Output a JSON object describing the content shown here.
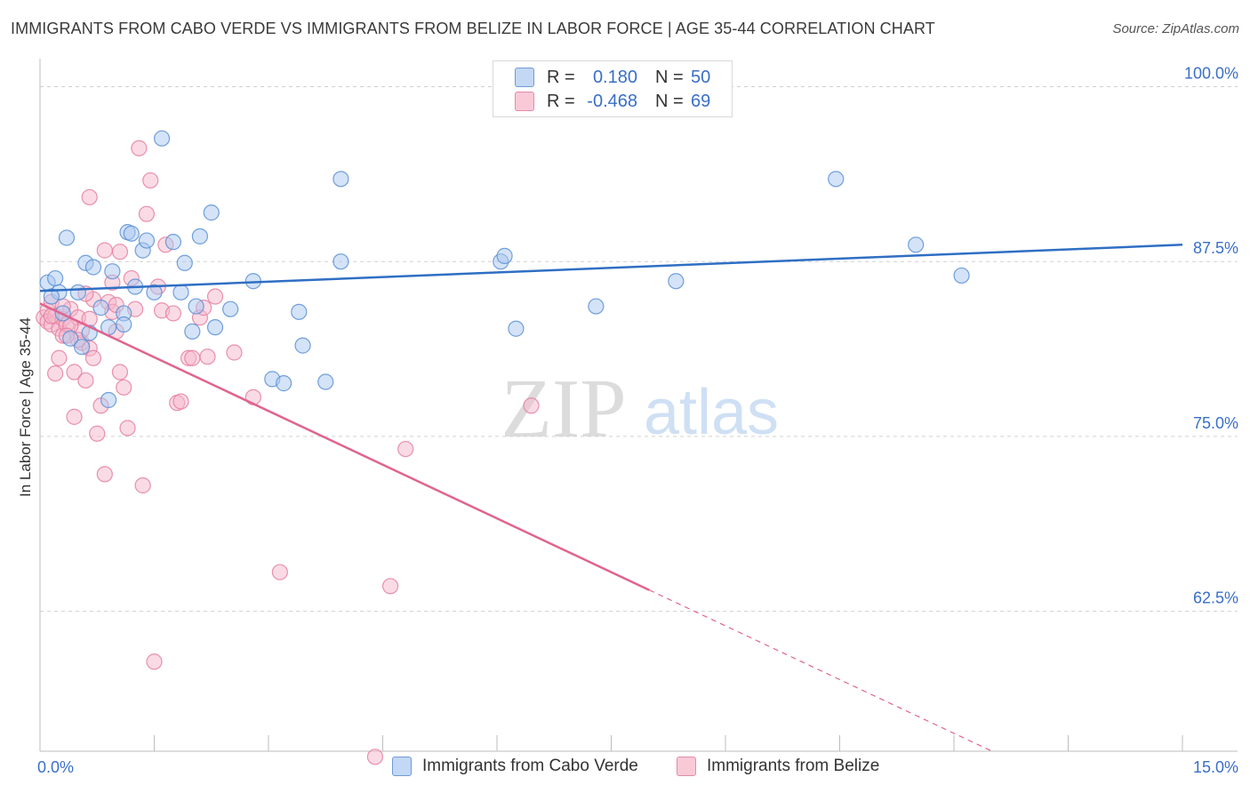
{
  "title": "IMMIGRANTS FROM CABO VERDE VS IMMIGRANTS FROM BELIZE IN LABOR FORCE | AGE 35-44 CORRELATION CHART",
  "source": "Source: ZipAtlas.com",
  "watermark": {
    "zip": "ZIP",
    "atlas": "atlas"
  },
  "legend": {
    "blue": {
      "r_label": "R =",
      "r_value": "0.180",
      "n_label": "N =",
      "n_value": "50"
    },
    "pink": {
      "r_label": "R =",
      "r_value": "-0.468",
      "n_label": "N =",
      "n_value": "69"
    }
  },
  "colors": {
    "blue_fill": "#a9c8f0",
    "blue_stroke": "#5b8fd6",
    "blue_line": "#2f6fc4",
    "blue_text": "#3a6fc8",
    "pink_fill": "#f6b8cb",
    "pink_stroke": "#e57fa0",
    "pink_line": "#e0648f",
    "grid": "#d0d0d0",
    "axis": "#bdbdbd"
  },
  "chart_data": {
    "type": "scatter",
    "title": "IMMIGRANTS FROM CABO VERDE VS IMMIGRANTS FROM BELIZE IN LABOR FORCE | AGE 35-44 CORRELATION CHART",
    "xlabel": "",
    "ylabel": "In Labor Force | Age 35-44",
    "x_tick_labels": {
      "min": "0.0%",
      "max": "15.0%"
    },
    "y_tick_labels": [
      "100.0%",
      "87.5%",
      "75.0%",
      "62.5%"
    ],
    "y_ticks": [
      100.0,
      87.5,
      75.0,
      62.5
    ],
    "xlim": [
      0,
      15
    ],
    "ylim": [
      52.5,
      102
    ],
    "grid": true,
    "series": [
      {
        "name": "Immigrants from Cabo Verde",
        "color": "blue",
        "r": 0.18,
        "n": 50,
        "trend": {
          "x0": 0.0,
          "y0": 85.4,
          "x1": 15.0,
          "y1": 88.7,
          "solid_until": 15.0
        },
        "points": [
          [
            0.1,
            86.0
          ],
          [
            0.2,
            86.3
          ],
          [
            0.25,
            85.3
          ],
          [
            0.15,
            85.0
          ],
          [
            0.35,
            89.2
          ],
          [
            0.3,
            83.8
          ],
          [
            0.5,
            85.3
          ],
          [
            0.4,
            82.0
          ],
          [
            0.6,
            87.4
          ],
          [
            0.7,
            87.1
          ],
          [
            0.55,
            81.4
          ],
          [
            0.65,
            82.4
          ],
          [
            0.8,
            84.2
          ],
          [
            0.9,
            82.8
          ],
          [
            0.95,
            86.8
          ],
          [
            1.1,
            83.8
          ],
          [
            1.15,
            89.6
          ],
          [
            1.2,
            89.5
          ],
          [
            1.25,
            85.7
          ],
          [
            1.35,
            88.3
          ],
          [
            1.4,
            89.0
          ],
          [
            1.5,
            85.3
          ],
          [
            1.6,
            96.3
          ],
          [
            1.75,
            88.9
          ],
          [
            1.85,
            85.3
          ],
          [
            1.9,
            87.4
          ],
          [
            2.0,
            82.5
          ],
          [
            2.05,
            84.3
          ],
          [
            2.1,
            89.3
          ],
          [
            2.25,
            91.0
          ],
          [
            2.3,
            82.8
          ],
          [
            2.5,
            84.1
          ],
          [
            2.8,
            86.1
          ],
          [
            3.05,
            79.1
          ],
          [
            3.2,
            78.8
          ],
          [
            3.4,
            83.9
          ],
          [
            3.45,
            81.5
          ],
          [
            3.75,
            78.9
          ],
          [
            3.95,
            93.4
          ],
          [
            3.95,
            87.5
          ],
          [
            6.05,
            87.5
          ],
          [
            6.1,
            87.9
          ],
          [
            6.25,
            82.7
          ],
          [
            7.3,
            84.3
          ],
          [
            8.35,
            86.1
          ],
          [
            10.45,
            93.4
          ],
          [
            11.5,
            88.7
          ],
          [
            12.1,
            86.5
          ],
          [
            0.9,
            77.6
          ],
          [
            1.1,
            83.0
          ]
        ]
      },
      {
        "name": "Immigrants from Belize",
        "color": "pink",
        "r": -0.468,
        "n": 69,
        "trend": {
          "x0": 0.0,
          "y0": 84.5,
          "x1": 12.5,
          "y1": 52.5,
          "solid_until": 8.0
        },
        "points": [
          [
            0.05,
            83.5
          ],
          [
            0.1,
            84.0
          ],
          [
            0.1,
            83.2
          ],
          [
            0.15,
            84.6
          ],
          [
            0.15,
            83.0
          ],
          [
            0.2,
            83.6
          ],
          [
            0.25,
            82.7
          ],
          [
            0.25,
            80.6
          ],
          [
            0.3,
            82.2
          ],
          [
            0.3,
            83.4
          ],
          [
            0.35,
            83.0
          ],
          [
            0.4,
            84.1
          ],
          [
            0.45,
            79.6
          ],
          [
            0.45,
            76.4
          ],
          [
            0.5,
            83.5
          ],
          [
            0.55,
            81.7
          ],
          [
            0.55,
            82.6
          ],
          [
            0.6,
            79.0
          ],
          [
            0.65,
            83.4
          ],
          [
            0.65,
            81.3
          ],
          [
            0.7,
            80.6
          ],
          [
            0.75,
            75.2
          ],
          [
            0.8,
            77.2
          ],
          [
            0.85,
            72.3
          ],
          [
            0.9,
            84.6
          ],
          [
            0.95,
            83.9
          ],
          [
            1.0,
            82.5
          ],
          [
            1.05,
            79.6
          ],
          [
            1.1,
            78.5
          ],
          [
            1.15,
            75.6
          ],
          [
            0.85,
            88.3
          ],
          [
            0.95,
            86.0
          ],
          [
            1.05,
            88.2
          ],
          [
            1.2,
            86.3
          ],
          [
            1.3,
            95.6
          ],
          [
            1.35,
            71.5
          ],
          [
            1.4,
            90.9
          ],
          [
            1.45,
            93.3
          ],
          [
            1.55,
            85.7
          ],
          [
            1.6,
            84.0
          ],
          [
            1.65,
            88.7
          ],
          [
            1.75,
            83.8
          ],
          [
            1.8,
            77.4
          ],
          [
            1.85,
            77.5
          ],
          [
            1.95,
            80.6
          ],
          [
            2.0,
            80.6
          ],
          [
            2.1,
            83.5
          ],
          [
            2.15,
            84.2
          ],
          [
            2.2,
            80.7
          ],
          [
            2.3,
            85.0
          ],
          [
            2.55,
            81.0
          ],
          [
            2.8,
            77.8
          ],
          [
            3.15,
            65.3
          ],
          [
            4.4,
            52.1
          ],
          [
            4.6,
            64.3
          ],
          [
            4.8,
            74.1
          ],
          [
            6.45,
            77.2
          ],
          [
            0.65,
            92.1
          ],
          [
            1.0,
            84.4
          ],
          [
            1.5,
            58.9
          ],
          [
            0.7,
            84.8
          ],
          [
            0.3,
            84.3
          ],
          [
            0.4,
            82.9
          ],
          [
            0.5,
            81.9
          ],
          [
            0.2,
            79.5
          ],
          [
            0.15,
            83.6
          ],
          [
            0.35,
            82.2
          ],
          [
            1.25,
            84.1
          ],
          [
            0.6,
            85.2
          ]
        ]
      }
    ]
  }
}
